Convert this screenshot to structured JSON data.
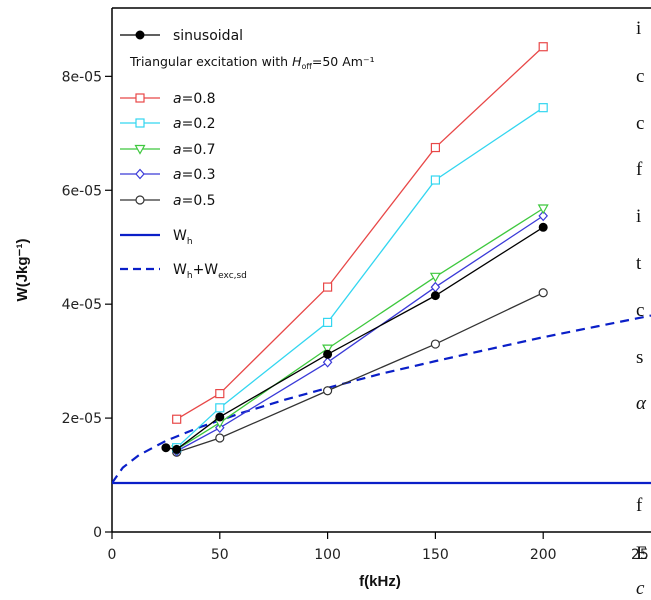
{
  "side_text_fragments": [
    "i",
    "c",
    "c",
    "f",
    "i",
    "t",
    "c",
    "s",
    "α",
    "f",
    "E",
    "c"
  ],
  "x_tick_partial": "25",
  "chart_data": {
    "type": "line",
    "xlabel": "f(kHz)",
    "ylabel": "W(Jkg⁻¹)",
    "xlim": [
      0,
      250
    ],
    "ylim": [
      0,
      9.2e-05
    ],
    "x_ticks": [
      0,
      50,
      100,
      150,
      200
    ],
    "x_tick_labels": [
      "0",
      "50",
      "100",
      "150",
      "200"
    ],
    "y_ticks": [
      0,
      2e-05,
      4e-05,
      6e-05,
      8e-05
    ],
    "y_tick_labels": [
      "0",
      "2e-05",
      "4e-05",
      "6e-05",
      "8e-05"
    ],
    "legend_position": "top-left",
    "legend_note": "Triangular excitation with H_off=50 Am⁻¹",
    "series": [
      {
        "name": "sinusoidal",
        "label_main": "sinusoidal",
        "color": "#000000",
        "marker": "filled-circle",
        "x": [
          25,
          30,
          50,
          100,
          150,
          200
        ],
        "y": [
          1.48e-05,
          1.45e-05,
          2.02e-05,
          3.12e-05,
          4.15e-05,
          5.35e-05
        ]
      },
      {
        "name": "a=0.8",
        "label_var": "a",
        "label_main": "=0.8",
        "color": "#e84848",
        "marker": "square",
        "x": [
          30,
          50,
          100,
          150,
          200
        ],
        "y": [
          1.98e-05,
          2.43e-05,
          4.3e-05,
          6.75e-05,
          8.52e-05
        ]
      },
      {
        "name": "a=0.2",
        "label_var": "a",
        "label_main": "=0.2",
        "color": "#33d6f0",
        "marker": "square",
        "x": [
          30,
          50,
          100,
          150,
          200
        ],
        "y": [
          1.48e-05,
          2.18e-05,
          3.68e-05,
          6.18e-05,
          7.45e-05
        ]
      },
      {
        "name": "a=0.7",
        "label_var": "a",
        "label_main": "=0.7",
        "color": "#3ec83e",
        "marker": "triangle-down",
        "x": [
          30,
          50,
          100,
          150,
          200
        ],
        "y": [
          1.45e-05,
          1.92e-05,
          3.22e-05,
          4.48e-05,
          5.68e-05
        ]
      },
      {
        "name": "a=0.3",
        "label_var": "a",
        "label_main": "=0.3",
        "color": "#3a3ad8",
        "marker": "diamond",
        "x": [
          30,
          50,
          100,
          150,
          200
        ],
        "y": [
          1.42e-05,
          1.83e-05,
          2.98e-05,
          4.3e-05,
          5.55e-05
        ]
      },
      {
        "name": "a=0.5",
        "label_var": "a",
        "label_main": "=0.5",
        "color": "#333333",
        "marker": "open-circle",
        "x": [
          30,
          50,
          100,
          150,
          200
        ],
        "y": [
          1.4e-05,
          1.65e-05,
          2.48e-05,
          3.3e-05,
          4.2e-05
        ]
      },
      {
        "name": "Wh",
        "label_main": "W",
        "label_sub": "h",
        "color": "#0a1fc8",
        "marker": "none",
        "line": "solid",
        "x": [
          0,
          250
        ],
        "y": [
          8.6e-06,
          8.6e-06
        ]
      },
      {
        "name": "Wh+Wexc,sd",
        "label_main": "W",
        "label_sub": "h",
        "label_main2": "+W",
        "label_sub2": "exc,sd",
        "color": "#0a1fc8",
        "marker": "none",
        "line": "dashed",
        "x": [
          0,
          5,
          12.5,
          25,
          40,
          60,
          80,
          100,
          125,
          150,
          175,
          200,
          225,
          250
        ],
        "y": [
          8.6e-06,
          1.13e-05,
          1.35e-05,
          1.6e-05,
          1.83e-05,
          2.09e-05,
          2.32e-05,
          2.53e-05,
          2.78e-05,
          3e-05,
          3.21e-05,
          3.42e-05,
          3.61e-05,
          3.8e-05
        ]
      }
    ]
  }
}
